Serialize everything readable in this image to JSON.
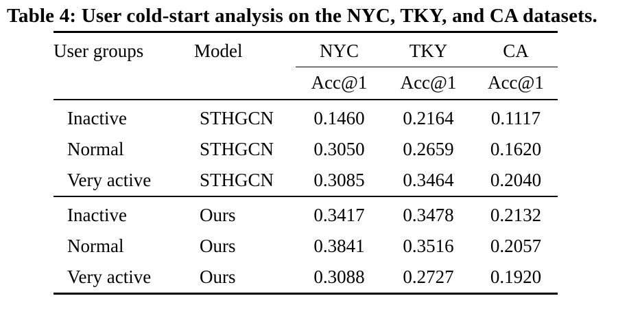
{
  "page": {
    "background": "#ffffff",
    "text_color": "#000000"
  },
  "caption": "Table 4: User cold-start analysis on the NYC, TKY, and CA datasets.",
  "table": {
    "header": {
      "user_groups": "User groups",
      "model": "Model",
      "datasets": [
        "NYC",
        "TKY",
        "CA"
      ],
      "metric": "Acc@1"
    },
    "rows": [
      {
        "group": "Inactive",
        "model": "STHGCN",
        "nyc": "0.1460",
        "tky": "0.2164",
        "ca": "0.1117"
      },
      {
        "group": "Normal",
        "model": "STHGCN",
        "nyc": "0.3050",
        "tky": "0.2659",
        "ca": "0.1620"
      },
      {
        "group": "Very active",
        "model": "STHGCN",
        "nyc": "0.3085",
        "tky": "0.3464",
        "ca": "0.2040"
      },
      {
        "group": "Inactive",
        "model": "Ours",
        "nyc": "0.3417",
        "tky": "0.3478",
        "ca": "0.2132"
      },
      {
        "group": "Normal",
        "model": "Ours",
        "nyc": "0.3841",
        "tky": "0.3516",
        "ca": "0.2057"
      },
      {
        "group": "Very active",
        "model": "Ours",
        "nyc": "0.3088",
        "tky": "0.2727",
        "ca": "0.1920"
      }
    ]
  }
}
